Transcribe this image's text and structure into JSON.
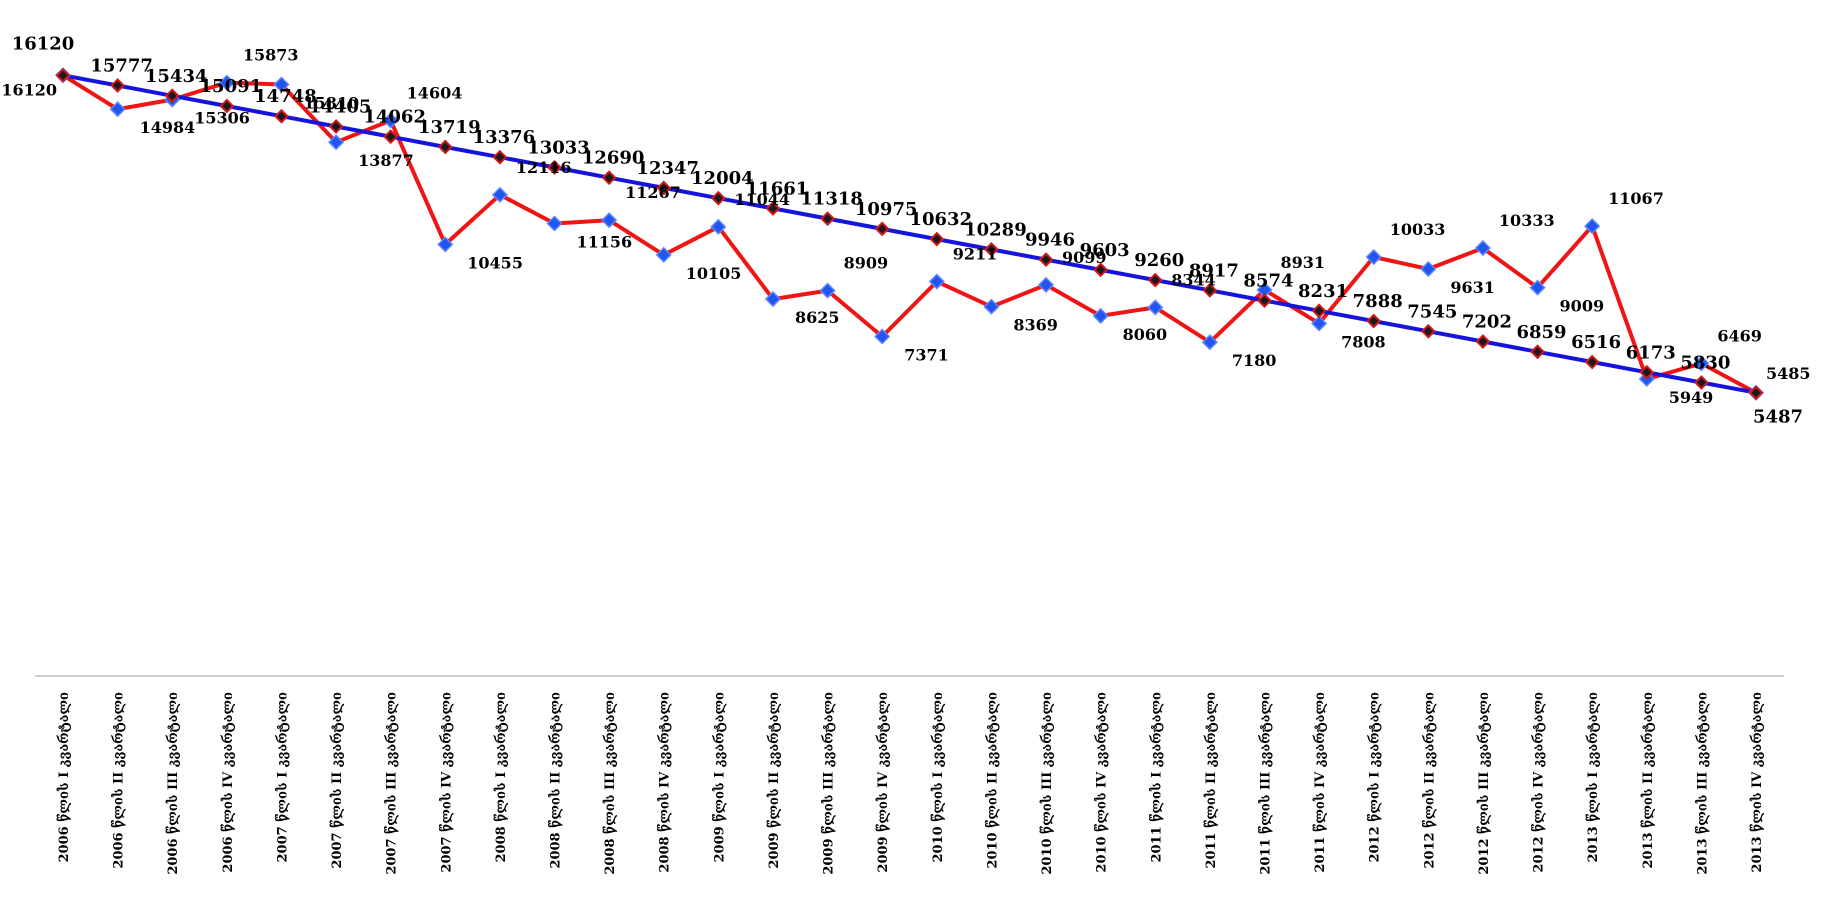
{
  "chart_data": {
    "type": "line",
    "title": "",
    "xlabel": "",
    "ylabel": "",
    "ylim": [
      -4000,
      17000
    ],
    "grid": false,
    "legend": "none",
    "categories": [
      "2006 წლის I კვარტალი",
      "2006 წლის II კვარტალი",
      "2006 წლის III კვარტალი",
      "2006 წლის IV კვარტალი",
      "2007 წლის I კვარტალი",
      "2007 წლის II კვარტალი",
      "2007 წლის III კვარტალი",
      "2007 წლის IV კვარტალი",
      "2008 წლის I კვარტალი",
      "2008 წლის II კვარტალი",
      "2008 წლის III კვარტალი",
      "2008 წლის IV კვარტალი",
      "2009 წლის I კვარტალი",
      "2009 წლის II კვარტალი",
      "2009 წლის III კვარტალი",
      "2009 წლის IV კვარტალი",
      "2010 წლის I კვარტალი",
      "2010 წლის II კვარტალი",
      "2010 წლის III კვარტალი",
      "2010 წლის IV კვარტალი",
      "2011 წლის I კვარტალი",
      "2011 წლის II კვარტალი",
      "2011 წლის III კვარტალი",
      "2011 წლის IV კვარტალი",
      "2012 წლის I კვარტალი",
      "2012 წლის II კვარტალი",
      "2012 წლის III კვარტალი",
      "2012 წლის IV კვარტალი",
      "2013 წლის I კვარტალი",
      "2013 წლის II კვარტალი",
      "2013 წლის III კვარტალი",
      "2013 წლის IV კვარტალი"
    ],
    "series": [
      {
        "color": "#1414dc",
        "marker": "diamond",
        "values": [
          16120,
          15777,
          15434,
          15091,
          14748,
          14405,
          14062,
          13719,
          13376,
          13033,
          12690,
          12347,
          12004,
          11661,
          11318,
          10975,
          10632,
          10289,
          9946,
          9603,
          9260,
          8917,
          8574,
          8231,
          7888,
          7545,
          7202,
          6859,
          6516,
          6173,
          5830,
          5487
        ]
      },
      {
        "color": "#f01414",
        "marker": "diamond",
        "values": [
          16120,
          14984,
          15306,
          15873,
          15810,
          13877,
          14604,
          10455,
          12116,
          11156,
          11267,
          10105,
          11044,
          8625,
          8909,
          7371,
          9211,
          8369,
          9099,
          8060,
          8344,
          7180,
          8931,
          7808,
          10033,
          9631,
          10333,
          9009,
          11067,
          5949,
          6469,
          5485
        ]
      }
    ]
  }
}
